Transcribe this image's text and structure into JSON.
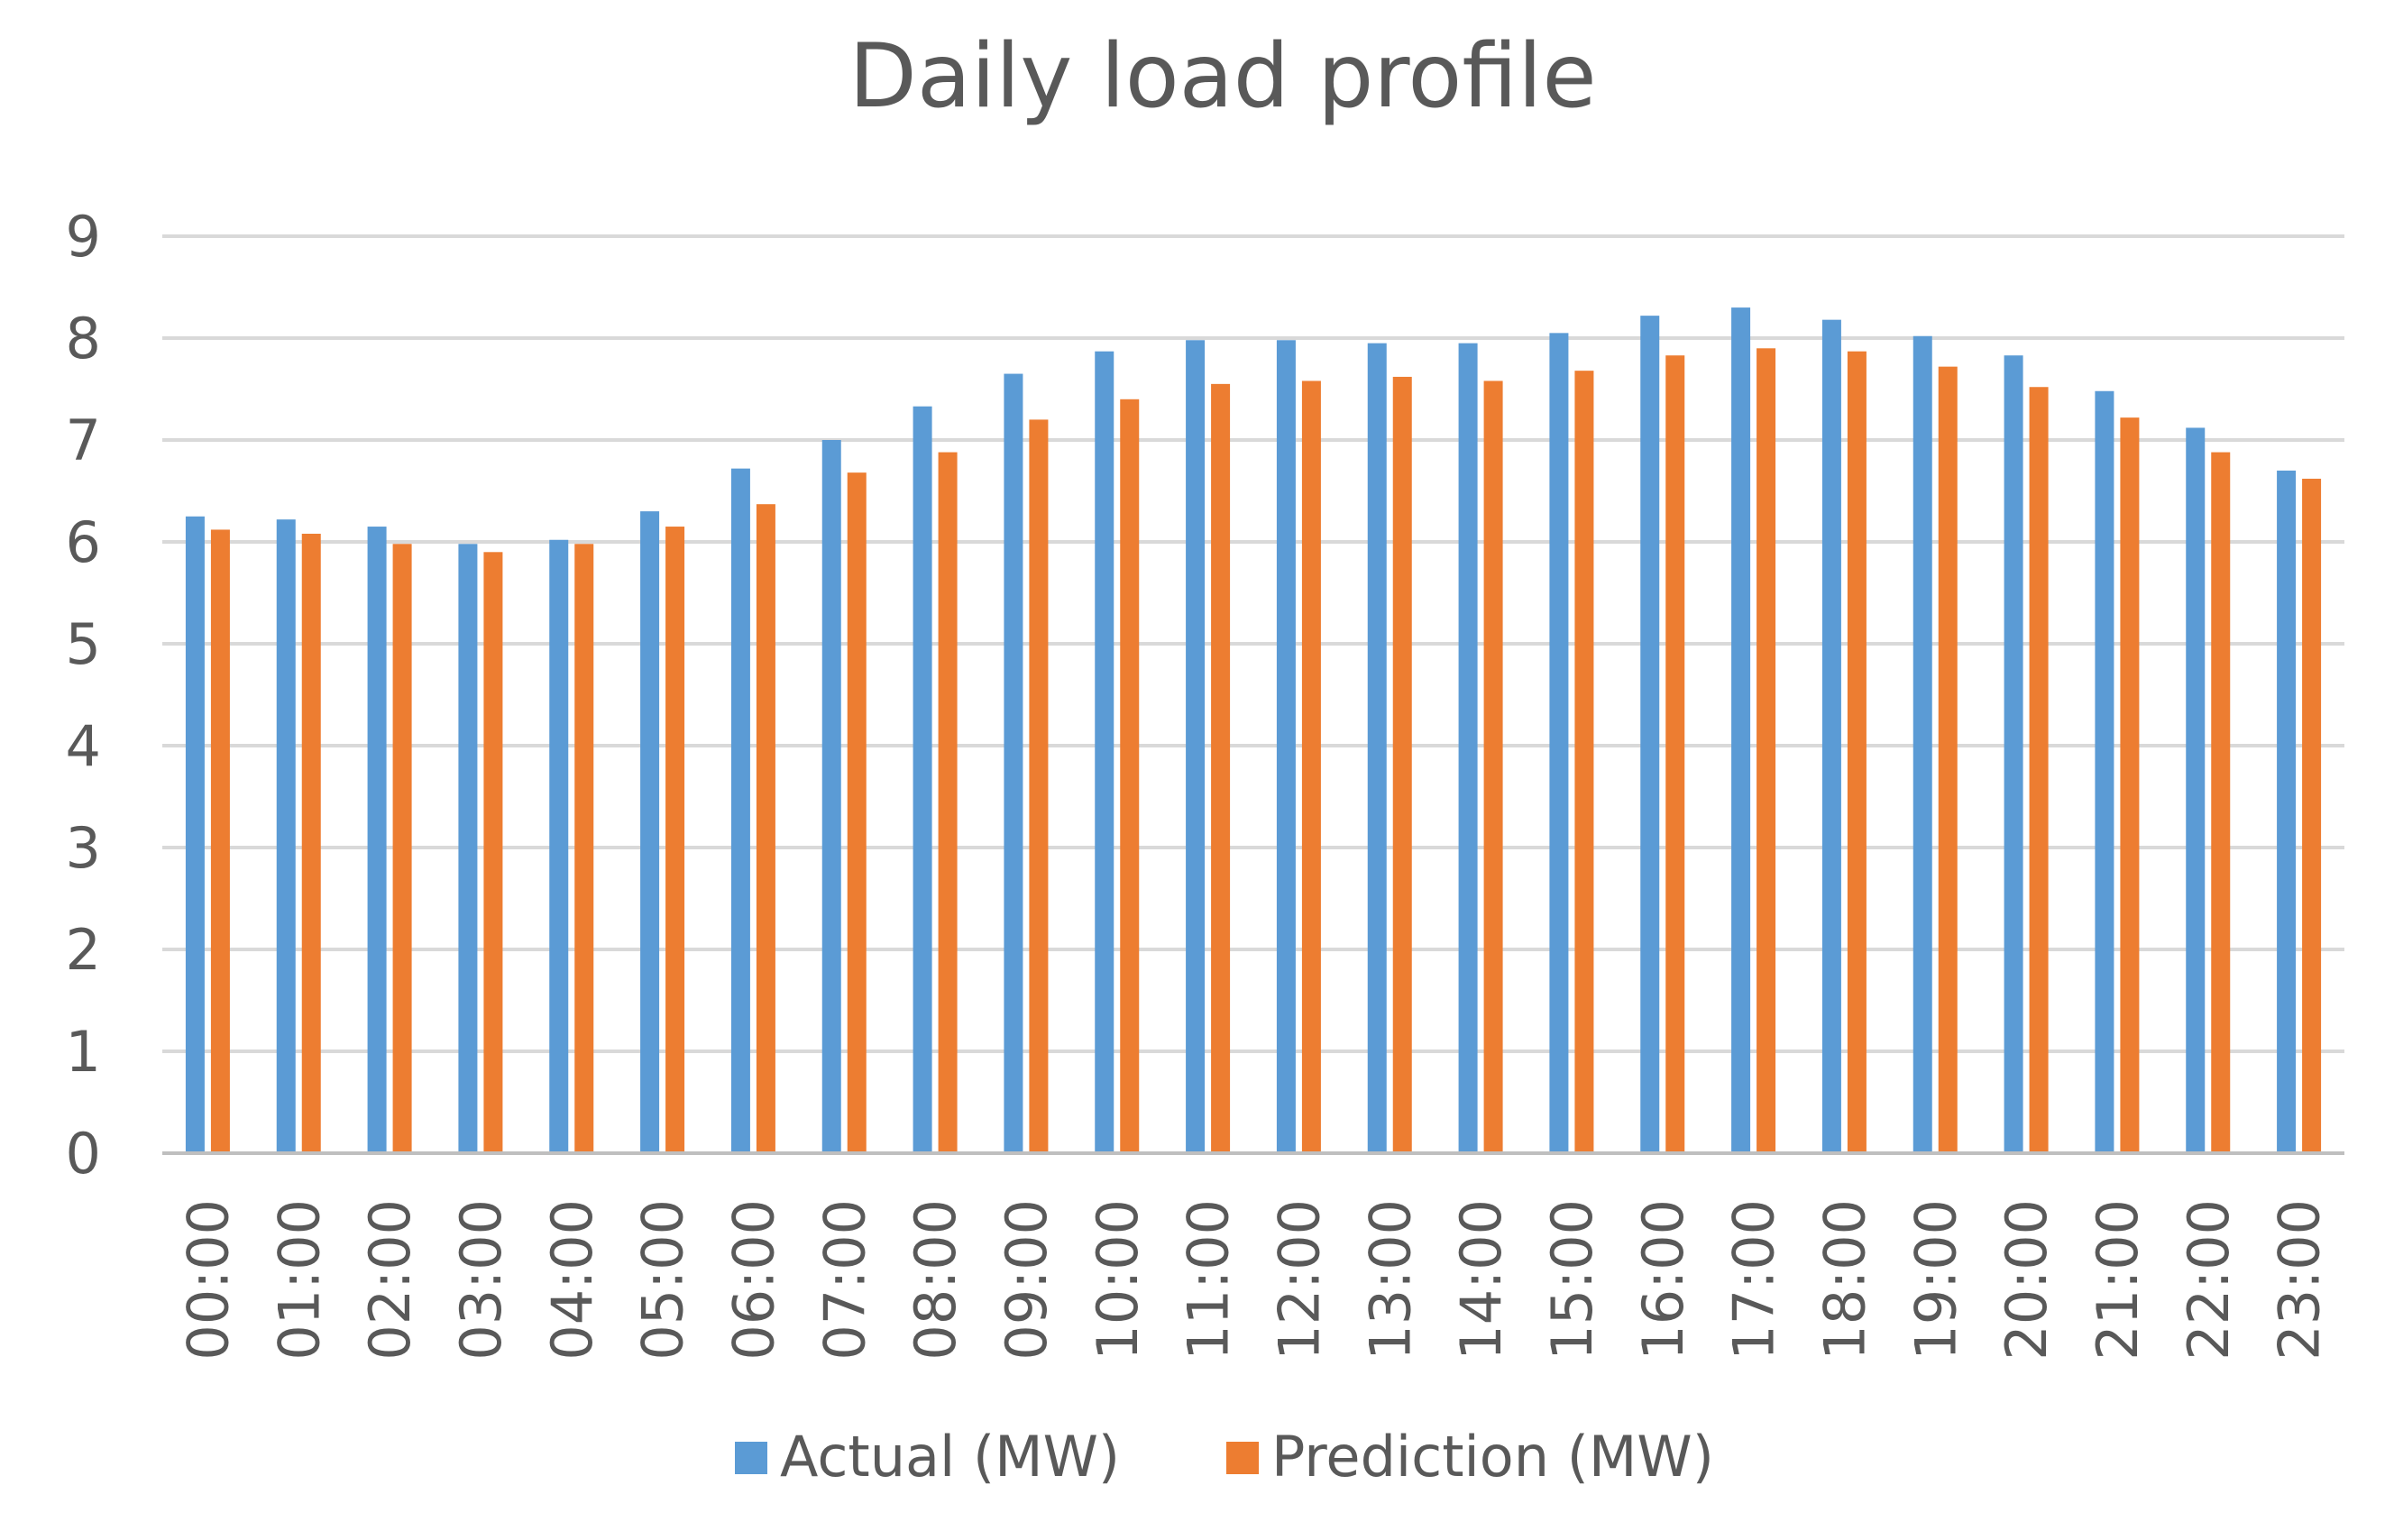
{
  "chart_data": {
    "type": "bar",
    "title": "Daily load profile",
    "xlabel": "",
    "ylabel": "",
    "ylim": [
      0,
      9
    ],
    "yticks": [
      "0",
      "1",
      "2",
      "3",
      "4",
      "5",
      "6",
      "7",
      "8",
      "9"
    ],
    "grid": true,
    "legend_position": "bottom-center",
    "categories": [
      "00:00",
      "01:00",
      "02:00",
      "03:00",
      "04:00",
      "05:00",
      "06:00",
      "07:00",
      "08:00",
      "09:00",
      "10:00",
      "11:00",
      "12:00",
      "13:00",
      "14:00",
      "15:00",
      "16:00",
      "17:00",
      "18:00",
      "19:00",
      "20:00",
      "21:00",
      "22:00",
      "23:00"
    ],
    "series": [
      {
        "name": "Actual (MW)",
        "color": "#5B9BD5",
        "values": [
          6.25,
          6.22,
          6.15,
          5.98,
          6.02,
          6.3,
          6.72,
          7.0,
          7.33,
          7.65,
          7.87,
          7.98,
          7.98,
          7.95,
          7.95,
          8.05,
          8.22,
          8.3,
          8.18,
          8.02,
          7.83,
          7.48,
          7.12,
          6.7
        ]
      },
      {
        "name": "Prediction (MW)",
        "color": "#ED7D31",
        "values": [
          6.12,
          6.08,
          5.98,
          5.9,
          5.98,
          6.15,
          6.37,
          6.68,
          6.88,
          7.2,
          7.4,
          7.55,
          7.58,
          7.62,
          7.58,
          7.68,
          7.83,
          7.9,
          7.87,
          7.72,
          7.52,
          7.22,
          6.88,
          6.62
        ]
      }
    ]
  },
  "colors": {
    "gridline": "#D9D9D9",
    "axis": "#BFBFBF",
    "text": "#595959"
  }
}
